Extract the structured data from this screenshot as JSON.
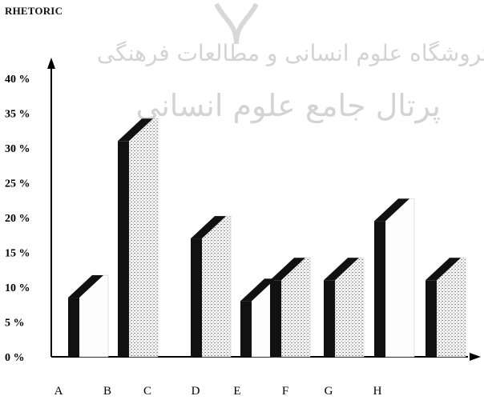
{
  "title": "RHETORIC",
  "watermark": {
    "line1": "ثروشگاه علوم انسانی و مطالعات فرهنگی",
    "line2": "پرتال جامع علوم انسانی"
  },
  "chart_data": {
    "type": "bar",
    "title": "RHETORIC",
    "categories": [
      "A",
      "B",
      "C",
      "D",
      "E",
      "F",
      "G",
      "H"
    ],
    "y_ticks": [
      "0 %",
      "5 %",
      "10 %",
      "15 %",
      "20 %",
      "25 %",
      "30 %",
      "35 %",
      "40 %"
    ],
    "ylim": [
      0,
      40
    ],
    "xlabel": "",
    "ylabel": "",
    "grid": false,
    "legend": "none",
    "bars": [
      {
        "value": 8.5,
        "style": "white"
      },
      {
        "value": 31,
        "style": "stipple"
      },
      {
        "value": 17,
        "style": "stipple"
      },
      {
        "value": 8,
        "style": "white"
      },
      {
        "value": 11,
        "style": "stipple"
      },
      {
        "value": 11,
        "style": "stipple"
      },
      {
        "value": 19.5,
        "style": "white"
      },
      {
        "value": 11,
        "style": "stipple"
      }
    ],
    "colors": {
      "axis": "#000000",
      "bar_dark": "#111111",
      "bar_light": "#fdfdfd",
      "stipple": "#9a9a9a"
    }
  }
}
